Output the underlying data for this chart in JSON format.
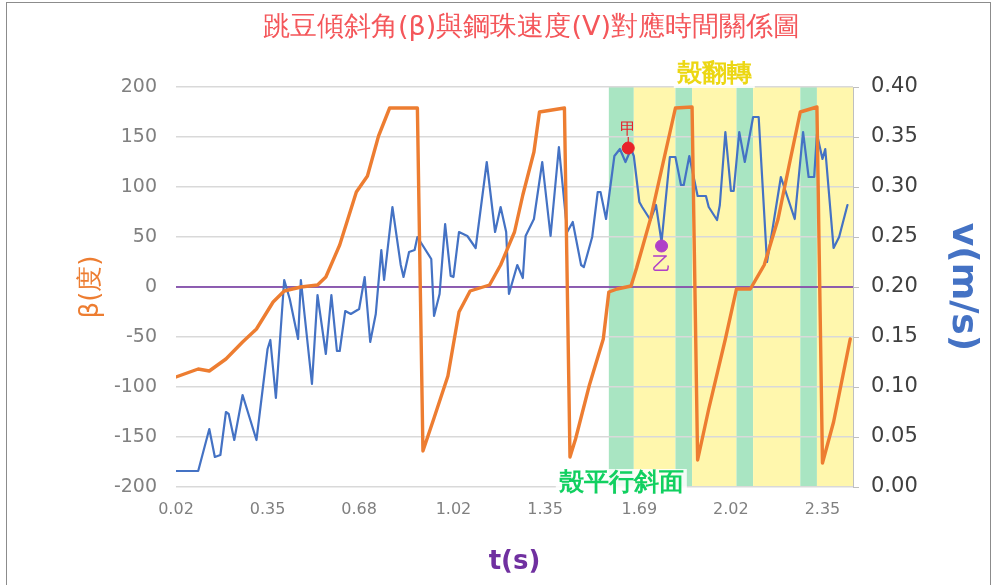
{
  "chart_data": {
    "type": "line",
    "title": "跳豆傾斜角(β)與鋼珠速度(V)對應時間關係圖",
    "xlabel": "t(s)",
    "ylabel": "β(度)",
    "y2label": "v(m/s)",
    "xlim": [
      0.02,
      2.46
    ],
    "xticks": [
      0.02,
      0.35,
      0.68,
      1.02,
      1.35,
      1.69,
      2.02,
      2.35
    ],
    "ylim": [
      -200,
      200
    ],
    "yticks": [
      -200,
      -150,
      -100,
      -50,
      0,
      50,
      100,
      150,
      200
    ],
    "y2lim": [
      0,
      0.4
    ],
    "y2ticks": [
      {
        "value": 0,
        "label": "0.00"
      },
      {
        "value": 0.05,
        "label": "0.05"
      },
      {
        "value": 0.1,
        "label": "0.10"
      },
      {
        "value": 0.15,
        "label": "0.15"
      },
      {
        "value": 0.2,
        "label": "0.20"
      },
      {
        "value": 0.25,
        "label": "0.25"
      },
      {
        "value": 0.3,
        "label": "0.30"
      },
      {
        "value": 0.35,
        "label": "0.35"
      },
      {
        "value": 0.4,
        "label": "0.40"
      }
    ],
    "grid": "y",
    "marker": "none",
    "series": [
      {
        "color": "#ed7d31",
        "x": [
          0.02,
          0.1,
          0.14,
          0.2,
          0.26,
          0.31,
          0.37,
          0.41,
          0.47,
          0.53,
          0.56,
          0.61,
          0.67,
          0.71,
          0.75,
          0.79,
          0.89,
          0.91,
          0.95,
          1.0,
          1.04,
          1.08,
          1.15,
          1.19,
          1.24,
          1.27,
          1.31,
          1.33,
          1.42,
          1.44,
          1.46,
          1.51,
          1.56,
          1.58,
          1.61,
          1.66,
          1.68,
          1.73,
          1.76,
          1.82,
          1.88,
          1.9,
          1.94,
          2.0,
          2.04,
          2.09,
          2.14,
          2.19,
          2.23,
          2.27,
          2.33,
          2.35,
          2.39,
          2.45
        ],
        "values": [
          -90,
          -82,
          -84,
          -72,
          -55,
          -42,
          -15,
          -4,
          0,
          2,
          10,
          42,
          95,
          111,
          151,
          179,
          179,
          -164,
          -131,
          -89,
          -25,
          -4,
          2,
          22,
          55,
          92,
          135,
          175,
          179,
          -170,
          -152,
          -98,
          -52,
          -5,
          -2,
          1,
          19,
          68,
          105,
          179,
          180,
          -173,
          -122,
          -52,
          -2,
          -2,
          22,
          68,
          122,
          175,
          180,
          -176,
          -135,
          -52
        ]
      },
      {
        "color": "#4472c4",
        "axis": "y2",
        "x": [
          0.02,
          0.1,
          0.14,
          0.16,
          0.18,
          0.2,
          0.21,
          0.23,
          0.26,
          0.31,
          0.35,
          0.36,
          0.38,
          0.41,
          0.43,
          0.46,
          0.47,
          0.51,
          0.53,
          0.56,
          0.58,
          0.6,
          0.61,
          0.63,
          0.65,
          0.68,
          0.7,
          0.72,
          0.74,
          0.76,
          0.77,
          0.8,
          0.83,
          0.84,
          0.86,
          0.88,
          0.89,
          0.94,
          0.95,
          0.97,
          0.99,
          1.01,
          1.02,
          1.04,
          1.07,
          1.1,
          1.14,
          1.17,
          1.19,
          1.21,
          1.22,
          1.25,
          1.27,
          1.28,
          1.31,
          1.34,
          1.37,
          1.4,
          1.43,
          1.45,
          1.48,
          1.49,
          1.52,
          1.54,
          1.55,
          1.57,
          1.6,
          1.62,
          1.64,
          1.66,
          1.67,
          1.69,
          1.7,
          1.73,
          1.75,
          1.77,
          1.8,
          1.82,
          1.84,
          1.85,
          1.87,
          1.9,
          1.93,
          1.94,
          1.97,
          1.98,
          2.0,
          2.02,
          2.03,
          2.05,
          2.07,
          2.1,
          2.12,
          2.15,
          2.17,
          2.2,
          2.25,
          2.28,
          2.3,
          2.32,
          2.33,
          2.35,
          2.36,
          2.39,
          2.41,
          2.44
        ],
        "values": [
          0.016,
          0.016,
          0.058,
          0.03,
          0.032,
          0.075,
          0.073,
          0.047,
          0.092,
          0.047,
          0.138,
          0.147,
          0.089,
          0.207,
          0.188,
          0.148,
          0.207,
          0.103,
          0.192,
          0.133,
          0.192,
          0.136,
          0.136,
          0.176,
          0.173,
          0.178,
          0.21,
          0.145,
          0.173,
          0.237,
          0.207,
          0.28,
          0.222,
          0.21,
          0.235,
          0.237,
          0.25,
          0.228,
          0.171,
          0.193,
          0.263,
          0.211,
          0.21,
          0.255,
          0.251,
          0.239,
          0.325,
          0.255,
          0.28,
          0.255,
          0.193,
          0.222,
          0.209,
          0.251,
          0.268,
          0.325,
          0.251,
          0.34,
          0.255,
          0.265,
          0.222,
          0.22,
          0.25,
          0.295,
          0.295,
          0.268,
          0.331,
          0.338,
          0.325,
          0.338,
          0.331,
          0.285,
          0.28,
          0.267,
          0.282,
          0.245,
          0.33,
          0.33,
          0.302,
          0.302,
          0.331,
          0.291,
          0.291,
          0.28,
          0.267,
          0.282,
          0.355,
          0.296,
          0.296,
          0.355,
          0.325,
          0.37,
          0.37,
          0.225,
          0.258,
          0.31,
          0.268,
          0.355,
          0.31,
          0.31,
          0.353,
          0.328,
          0.338,
          0.239,
          0.25,
          0.282
        ]
      },
      {
        "type": "scatter",
        "marker": "circle",
        "axis": "y2",
        "color": "#e8222a",
        "x": [
          1.65
        ],
        "values": [
          0.339
        ]
      },
      {
        "type": "scatter",
        "marker": "circle",
        "axis": "y2",
        "color": "#b040c8",
        "x": [
          1.77
        ],
        "values": [
          0.241
        ]
      }
    ],
    "ref_lines": [
      {
        "axis": "y",
        "value": 0,
        "color": "#7030a0"
      }
    ],
    "bands": [
      {
        "axis": "x",
        "from": 1.58,
        "to": 1.67,
        "color": "#a9e5c2",
        "label": "殼平行斜面"
      },
      {
        "axis": "x",
        "from": 1.67,
        "to": 1.82,
        "color": "#fff7ad"
      },
      {
        "axis": "x",
        "from": 1.82,
        "to": 1.88,
        "color": "#a9e5c2"
      },
      {
        "axis": "x",
        "from": 1.88,
        "to": 2.04,
        "color": "#fff7ad",
        "label": "殼翻轉"
      },
      {
        "axis": "x",
        "from": 2.04,
        "to": 2.1,
        "color": "#a9e5c2"
      },
      {
        "axis": "x",
        "from": 2.1,
        "to": 2.27,
        "color": "#fff7ad"
      },
      {
        "axis": "x",
        "from": 2.27,
        "to": 2.33,
        "color": "#a9e5c2"
      },
      {
        "axis": "x",
        "from": 2.33,
        "to": 2.46,
        "color": "#fff7ad"
      }
    ],
    "annotations": [
      "甲",
      "乙"
    ]
  }
}
